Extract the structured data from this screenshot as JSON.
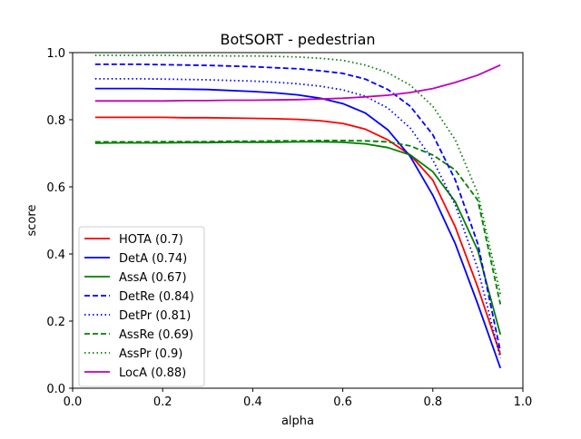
{
  "chart_data": {
    "type": "line",
    "title": "BotSORT - pedestrian",
    "xlabel": "alpha",
    "ylabel": "score",
    "xlim": [
      0.0,
      1.0
    ],
    "ylim": [
      0.0,
      1.0
    ],
    "xticks": [
      "0.0",
      "0.2",
      "0.4",
      "0.6",
      "0.8",
      "1.0"
    ],
    "yticks": [
      "0.0",
      "0.2",
      "0.4",
      "0.6",
      "0.8",
      "1.0"
    ],
    "grid": false,
    "legend_position": "lower-left",
    "x": [
      0.05,
      0.1,
      0.15,
      0.2,
      0.25,
      0.3,
      0.35,
      0.4,
      0.45,
      0.5,
      0.55,
      0.6,
      0.65,
      0.7,
      0.75,
      0.8,
      0.85,
      0.9,
      0.95
    ],
    "series": [
      {
        "name": "HOTA (0.7)",
        "color": "#ff0000",
        "dash": "solid",
        "values": [
          0.807,
          0.807,
          0.807,
          0.807,
          0.806,
          0.806,
          0.805,
          0.804,
          0.803,
          0.801,
          0.797,
          0.789,
          0.772,
          0.74,
          0.695,
          0.62,
          0.48,
          0.3,
          0.1
        ]
      },
      {
        "name": "DetA (0.74)",
        "color": "#0000ff",
        "dash": "solid",
        "values": [
          0.893,
          0.893,
          0.893,
          0.892,
          0.891,
          0.89,
          0.887,
          0.884,
          0.88,
          0.874,
          0.864,
          0.848,
          0.82,
          0.77,
          0.69,
          0.575,
          0.43,
          0.25,
          0.06
        ]
      },
      {
        "name": "AssA (0.67)",
        "color": "#008000",
        "dash": "solid",
        "values": [
          0.73,
          0.731,
          0.731,
          0.731,
          0.732,
          0.732,
          0.733,
          0.733,
          0.733,
          0.734,
          0.734,
          0.733,
          0.728,
          0.717,
          0.695,
          0.645,
          0.555,
          0.41,
          0.16
        ]
      },
      {
        "name": "DetRe (0.84)",
        "color": "#0000ff",
        "dash": "dashed",
        "values": [
          0.965,
          0.965,
          0.965,
          0.964,
          0.963,
          0.962,
          0.96,
          0.958,
          0.955,
          0.952,
          0.946,
          0.938,
          0.921,
          0.89,
          0.84,
          0.755,
          0.62,
          0.43,
          0.11
        ]
      },
      {
        "name": "DetPr (0.81)",
        "color": "#0000ff",
        "dash": "dotted",
        "values": [
          0.922,
          0.922,
          0.922,
          0.921,
          0.92,
          0.919,
          0.917,
          0.915,
          0.912,
          0.907,
          0.9,
          0.889,
          0.87,
          0.835,
          0.775,
          0.68,
          0.545,
          0.355,
          0.09
        ]
      },
      {
        "name": "AssRe (0.69)",
        "color": "#008000",
        "dash": "dashed",
        "values": [
          0.734,
          0.734,
          0.734,
          0.735,
          0.735,
          0.735,
          0.736,
          0.736,
          0.737,
          0.737,
          0.738,
          0.738,
          0.737,
          0.734,
          0.722,
          0.695,
          0.65,
          0.56,
          0.25
        ]
      },
      {
        "name": "AssPr (0.9)",
        "color": "#008000",
        "dash": "dotted",
        "values": [
          0.992,
          0.992,
          0.992,
          0.992,
          0.991,
          0.991,
          0.99,
          0.99,
          0.989,
          0.987,
          0.983,
          0.977,
          0.963,
          0.94,
          0.903,
          0.84,
          0.74,
          0.58,
          0.28
        ]
      },
      {
        "name": "LocA (0.88)",
        "color": "#bf00bf",
        "dash": "solid",
        "values": [
          0.856,
          0.856,
          0.856,
          0.856,
          0.857,
          0.857,
          0.858,
          0.858,
          0.859,
          0.86,
          0.862,
          0.864,
          0.868,
          0.873,
          0.881,
          0.893,
          0.911,
          0.933,
          0.963
        ]
      }
    ]
  }
}
